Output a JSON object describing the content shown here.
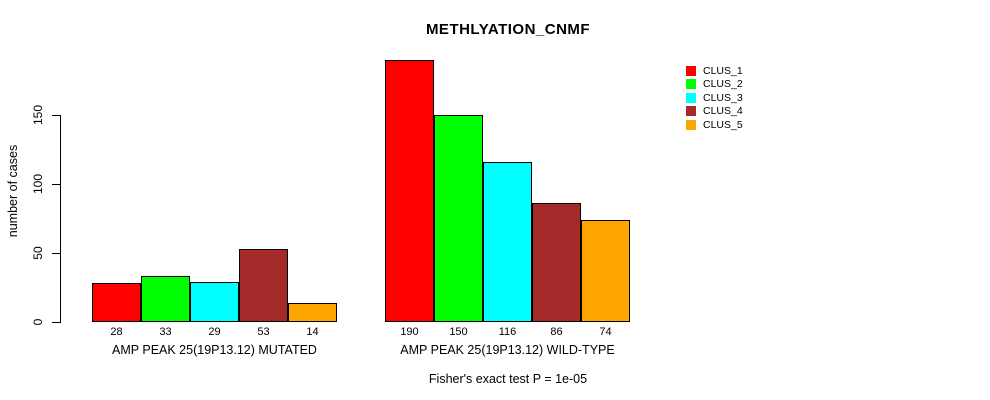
{
  "chart_data": {
    "type": "bar",
    "title": "METHLYATION_CNMF",
    "ylabel": "number of cases",
    "xlabel": "",
    "yticks": [
      0,
      50,
      100,
      150
    ],
    "ylim": [
      0,
      195
    ],
    "grid": false,
    "legend_position": "right",
    "series_names": [
      "CLUS_1",
      "CLUS_2",
      "CLUS_3",
      "CLUS_4",
      "CLUS_5"
    ],
    "colors": [
      "#FF0000",
      "#00FF00",
      "#00FFFF",
      "#A52A2A",
      "#FFA500"
    ],
    "groups": [
      {
        "label": "AMP PEAK 25(19P13.12) MUTATED",
        "values": [
          28,
          33,
          29,
          53,
          14
        ]
      },
      {
        "label": "AMP PEAK 25(19P13.12) WILD-TYPE",
        "values": [
          190,
          150,
          116,
          86,
          74
        ]
      }
    ],
    "annotation": "Fisher's exact test P = 1e-05"
  }
}
